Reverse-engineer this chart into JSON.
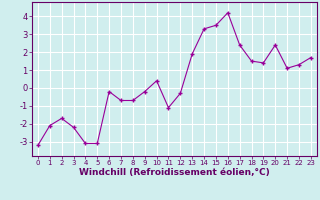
{
  "x": [
    0,
    1,
    2,
    3,
    4,
    5,
    6,
    7,
    8,
    9,
    10,
    11,
    12,
    13,
    14,
    15,
    16,
    17,
    18,
    19,
    20,
    21,
    22,
    23
  ],
  "y": [
    -3.2,
    -2.1,
    -1.7,
    -2.2,
    -3.1,
    -3.1,
    -0.2,
    -0.7,
    -0.7,
    -0.2,
    0.4,
    -1.1,
    -0.3,
    1.9,
    3.3,
    3.5,
    4.2,
    2.4,
    1.5,
    1.4,
    2.4,
    1.1,
    1.3,
    1.7
  ],
  "line_color": "#990099",
  "marker": "+",
  "bg_color": "#d0eeee",
  "grid_color": "#ffffff",
  "axis_color": "#660066",
  "tick_color": "#660066",
  "xlabel": "Windchill (Refroidissement éolien,°C)",
  "xlabel_fontsize": 6.5,
  "ytick_labels": [
    "-3",
    "-2",
    "-1",
    "0",
    "1",
    "2",
    "3",
    "4"
  ],
  "ylim": [
    -3.8,
    4.8
  ],
  "xlim": [
    -0.5,
    23.5
  ]
}
